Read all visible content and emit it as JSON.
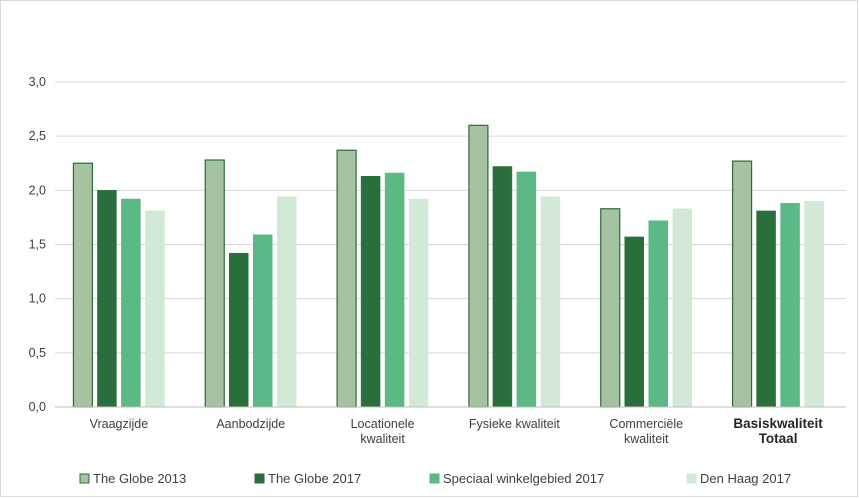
{
  "chart_data": {
    "type": "bar",
    "title": "",
    "xlabel": "",
    "ylabel": "",
    "ylim": [
      0,
      3.0
    ],
    "yticks": [
      "0,0",
      "0,5",
      "1,0",
      "1,5",
      "2,0",
      "2,5",
      "3,0"
    ],
    "grid": true,
    "legend_position": "bottom",
    "categories": [
      {
        "lines": [
          "Vraagzijde"
        ],
        "bold": false
      },
      {
        "lines": [
          "Aanbodzijde"
        ],
        "bold": false
      },
      {
        "lines": [
          "Locationele",
          "kwaliteit"
        ],
        "bold": false
      },
      {
        "lines": [
          "Fysieke kwaliteit"
        ],
        "bold": false
      },
      {
        "lines": [
          "Commerciële",
          "kwaliteit"
        ],
        "bold": false
      },
      {
        "lines": [
          "Basiskwaliteit",
          "Totaal"
        ],
        "bold": true
      }
    ],
    "series": [
      {
        "name": "The Globe 2013",
        "color": "#a5c3a1",
        "stroke": "#2f6b3a",
        "values": [
          2.25,
          2.28,
          2.37,
          2.6,
          1.83,
          2.27
        ]
      },
      {
        "name": "The Globe 2017",
        "color": "#2a6e3c",
        "stroke": "#2a6e3c",
        "values": [
          2.0,
          1.42,
          2.13,
          2.22,
          1.57,
          1.81
        ]
      },
      {
        "name": "Speciaal winkelgebied 2017",
        "color": "#5cb884",
        "stroke": "#5cb884",
        "values": [
          1.92,
          1.59,
          2.16,
          2.17,
          1.72,
          1.88
        ]
      },
      {
        "name": "Den Haag 2017",
        "color": "#d3e9d7",
        "stroke": "#d3e9d7",
        "values": [
          1.81,
          1.94,
          1.92,
          1.94,
          1.83,
          1.9
        ]
      }
    ]
  }
}
